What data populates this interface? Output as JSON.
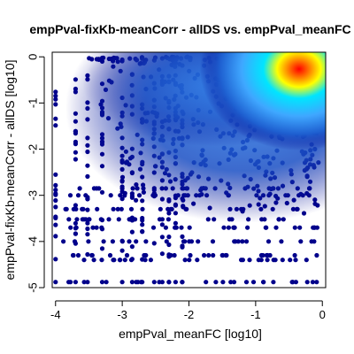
{
  "chart_data": {
    "type": "scatter",
    "title": "empPval-fixKb-meanCorr - allDS vs. empPval_meanFC",
    "xlabel": "empPval_meanFC [log10]",
    "ylabel": "empPval-fixKb-meanCorr - allDS [log10]",
    "xlim": [
      -4.05,
      0.05
    ],
    "ylim": [
      -5.0,
      0.1
    ],
    "x_ticks": [
      -4,
      -3,
      -2,
      -1,
      0
    ],
    "y_ticks": [
      -5,
      -4,
      -3,
      -2,
      -1,
      0
    ],
    "x_tick_labels": [
      "-4",
      "-3",
      "-2",
      "-1",
      "0"
    ],
    "y_tick_labels": [
      "-5",
      "-4",
      "-3",
      "-2",
      "-1",
      "0"
    ],
    "point_color": "#00008b",
    "density_colormap": [
      "#00008b",
      "#1e5fd0",
      "#3fa7ff",
      "#00e5ff",
      "#ffff00",
      "#ff8c00",
      "#ff0000"
    ],
    "density_peak": {
      "x": -0.35,
      "y": -0.15
    },
    "grid": false,
    "legend": "none"
  }
}
